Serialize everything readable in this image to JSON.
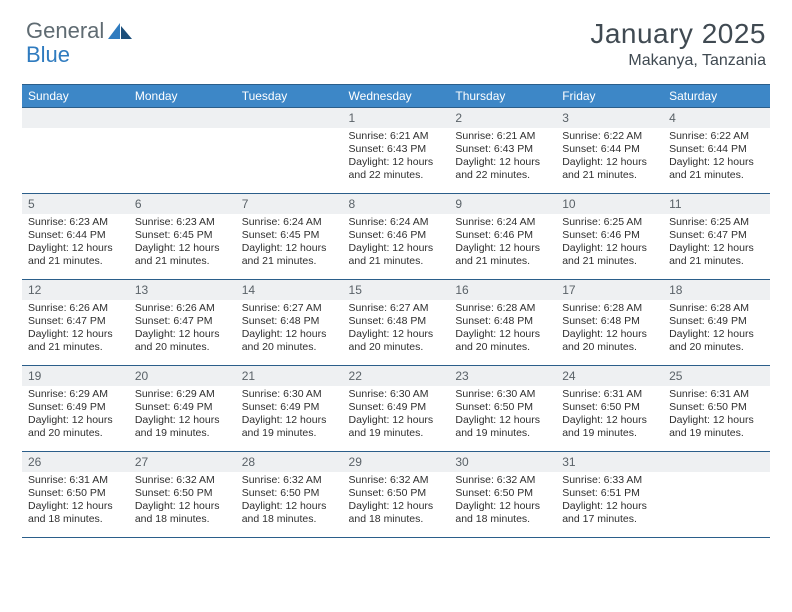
{
  "logo": {
    "text1": "General",
    "text2": "Blue"
  },
  "title": "January 2025",
  "location": "Makanya, Tanzania",
  "columns": [
    "Sunday",
    "Monday",
    "Tuesday",
    "Wednesday",
    "Thursday",
    "Friday",
    "Saturday"
  ],
  "colors": {
    "header_bg": "#3d87c7",
    "header_border": "#2b5e8a",
    "daynum_bg": "#eef0f2",
    "text": "#2f2f2f",
    "title_text": "#404a52"
  },
  "weeks": [
    [
      {
        "n": "",
        "sr": "",
        "ss": "",
        "dl": ""
      },
      {
        "n": "",
        "sr": "",
        "ss": "",
        "dl": ""
      },
      {
        "n": "",
        "sr": "",
        "ss": "",
        "dl": ""
      },
      {
        "n": "1",
        "sr": "6:21 AM",
        "ss": "6:43 PM",
        "dl": "12 hours and 22 minutes."
      },
      {
        "n": "2",
        "sr": "6:21 AM",
        "ss": "6:43 PM",
        "dl": "12 hours and 22 minutes."
      },
      {
        "n": "3",
        "sr": "6:22 AM",
        "ss": "6:44 PM",
        "dl": "12 hours and 21 minutes."
      },
      {
        "n": "4",
        "sr": "6:22 AM",
        "ss": "6:44 PM",
        "dl": "12 hours and 21 minutes."
      }
    ],
    [
      {
        "n": "5",
        "sr": "6:23 AM",
        "ss": "6:44 PM",
        "dl": "12 hours and 21 minutes."
      },
      {
        "n": "6",
        "sr": "6:23 AM",
        "ss": "6:45 PM",
        "dl": "12 hours and 21 minutes."
      },
      {
        "n": "7",
        "sr": "6:24 AM",
        "ss": "6:45 PM",
        "dl": "12 hours and 21 minutes."
      },
      {
        "n": "8",
        "sr": "6:24 AM",
        "ss": "6:46 PM",
        "dl": "12 hours and 21 minutes."
      },
      {
        "n": "9",
        "sr": "6:24 AM",
        "ss": "6:46 PM",
        "dl": "12 hours and 21 minutes."
      },
      {
        "n": "10",
        "sr": "6:25 AM",
        "ss": "6:46 PM",
        "dl": "12 hours and 21 minutes."
      },
      {
        "n": "11",
        "sr": "6:25 AM",
        "ss": "6:47 PM",
        "dl": "12 hours and 21 minutes."
      }
    ],
    [
      {
        "n": "12",
        "sr": "6:26 AM",
        "ss": "6:47 PM",
        "dl": "12 hours and 21 minutes."
      },
      {
        "n": "13",
        "sr": "6:26 AM",
        "ss": "6:47 PM",
        "dl": "12 hours and 20 minutes."
      },
      {
        "n": "14",
        "sr": "6:27 AM",
        "ss": "6:48 PM",
        "dl": "12 hours and 20 minutes."
      },
      {
        "n": "15",
        "sr": "6:27 AM",
        "ss": "6:48 PM",
        "dl": "12 hours and 20 minutes."
      },
      {
        "n": "16",
        "sr": "6:28 AM",
        "ss": "6:48 PM",
        "dl": "12 hours and 20 minutes."
      },
      {
        "n": "17",
        "sr": "6:28 AM",
        "ss": "6:48 PM",
        "dl": "12 hours and 20 minutes."
      },
      {
        "n": "18",
        "sr": "6:28 AM",
        "ss": "6:49 PM",
        "dl": "12 hours and 20 minutes."
      }
    ],
    [
      {
        "n": "19",
        "sr": "6:29 AM",
        "ss": "6:49 PM",
        "dl": "12 hours and 20 minutes."
      },
      {
        "n": "20",
        "sr": "6:29 AM",
        "ss": "6:49 PM",
        "dl": "12 hours and 19 minutes."
      },
      {
        "n": "21",
        "sr": "6:30 AM",
        "ss": "6:49 PM",
        "dl": "12 hours and 19 minutes."
      },
      {
        "n": "22",
        "sr": "6:30 AM",
        "ss": "6:49 PM",
        "dl": "12 hours and 19 minutes."
      },
      {
        "n": "23",
        "sr": "6:30 AM",
        "ss": "6:50 PM",
        "dl": "12 hours and 19 minutes."
      },
      {
        "n": "24",
        "sr": "6:31 AM",
        "ss": "6:50 PM",
        "dl": "12 hours and 19 minutes."
      },
      {
        "n": "25",
        "sr": "6:31 AM",
        "ss": "6:50 PM",
        "dl": "12 hours and 19 minutes."
      }
    ],
    [
      {
        "n": "26",
        "sr": "6:31 AM",
        "ss": "6:50 PM",
        "dl": "12 hours and 18 minutes."
      },
      {
        "n": "27",
        "sr": "6:32 AM",
        "ss": "6:50 PM",
        "dl": "12 hours and 18 minutes."
      },
      {
        "n": "28",
        "sr": "6:32 AM",
        "ss": "6:50 PM",
        "dl": "12 hours and 18 minutes."
      },
      {
        "n": "29",
        "sr": "6:32 AM",
        "ss": "6:50 PM",
        "dl": "12 hours and 18 minutes."
      },
      {
        "n": "30",
        "sr": "6:32 AM",
        "ss": "6:50 PM",
        "dl": "12 hours and 18 minutes."
      },
      {
        "n": "31",
        "sr": "6:33 AM",
        "ss": "6:51 PM",
        "dl": "12 hours and 17 minutes."
      },
      {
        "n": "",
        "sr": "",
        "ss": "",
        "dl": ""
      }
    ]
  ],
  "labels": {
    "sunrise": "Sunrise: ",
    "sunset": "Sunset: ",
    "daylight": "Daylight: "
  }
}
